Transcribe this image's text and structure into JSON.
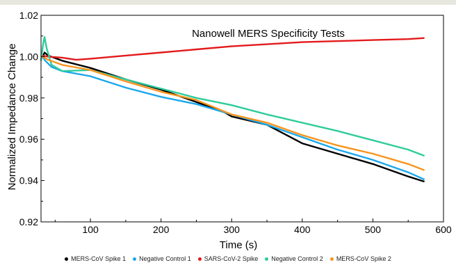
{
  "chart_data": {
    "type": "line",
    "title": "Nanowell MERS Specificity Tests",
    "xlabel": "Time (s)",
    "ylabel": "Normalized Impedance Change",
    "xlim": [
      30,
      600
    ],
    "ylim": [
      0.92,
      1.02
    ],
    "x_ticks": [
      100,
      200,
      300,
      400,
      500,
      600
    ],
    "y_ticks": [
      0.92,
      0.94,
      0.96,
      0.98,
      1.0,
      1.02
    ],
    "x_tick_labels": [
      "100",
      "200",
      "300",
      "400",
      "500",
      "600"
    ],
    "y_tick_labels": [
      "0.92",
      "0.94",
      "0.96",
      "0.98",
      "1.00",
      "1.02"
    ],
    "grid": false,
    "legend_position": "bottom",
    "series": [
      {
        "name": "MERS-CoV Spike 1",
        "color": "#000000",
        "points": [
          [
            32,
            0.9995
          ],
          [
            35,
            1.002
          ],
          [
            40,
            1.0005
          ],
          [
            60,
            0.998
          ],
          [
            100,
            0.9945
          ],
          [
            150,
            0.989
          ],
          [
            200,
            0.984
          ],
          [
            250,
            0.978
          ],
          [
            290,
            0.973
          ],
          [
            300,
            0.971
          ],
          [
            350,
            0.967
          ],
          [
            400,
            0.958
          ],
          [
            450,
            0.953
          ],
          [
            500,
            0.948
          ],
          [
            550,
            0.942
          ],
          [
            573,
            0.9395
          ]
        ]
      },
      {
        "name": "Negative Control 1",
        "color": "#1aa7ec",
        "points": [
          [
            32,
            1.0
          ],
          [
            36,
            0.998
          ],
          [
            45,
            0.995
          ],
          [
            60,
            0.993
          ],
          [
            100,
            0.9905
          ],
          [
            150,
            0.985
          ],
          [
            200,
            0.9805
          ],
          [
            250,
            0.977
          ],
          [
            300,
            0.972
          ],
          [
            350,
            0.967
          ],
          [
            400,
            0.961
          ],
          [
            450,
            0.955
          ],
          [
            500,
            0.95
          ],
          [
            550,
            0.944
          ],
          [
            573,
            0.9405
          ]
        ]
      },
      {
        "name": "SARS-CoV-2 Spike",
        "color": "#e31a1c",
        "points": [
          [
            32,
            1.0005
          ],
          [
            40,
            1.0
          ],
          [
            60,
            0.9995
          ],
          [
            80,
            0.9985
          ],
          [
            100,
            0.999
          ],
          [
            150,
            1.0005
          ],
          [
            200,
            1.002
          ],
          [
            250,
            1.0035
          ],
          [
            300,
            1.005
          ],
          [
            350,
            1.006
          ],
          [
            400,
            1.007
          ],
          [
            450,
            1.0075
          ],
          [
            500,
            1.008
          ],
          [
            550,
            1.0085
          ],
          [
            573,
            1.009
          ]
        ]
      },
      {
        "name": "Negative Control 2",
        "color": "#2ecc9a",
        "points": [
          [
            30,
            0.998
          ],
          [
            33,
            1.006
          ],
          [
            35,
            1.0095
          ],
          [
            38,
            1.004
          ],
          [
            45,
            0.996
          ],
          [
            60,
            0.993
          ],
          [
            100,
            0.9935
          ],
          [
            150,
            0.989
          ],
          [
            200,
            0.9845
          ],
          [
            250,
            0.98
          ],
          [
            300,
            0.9765
          ],
          [
            350,
            0.972
          ],
          [
            400,
            0.968
          ],
          [
            450,
            0.964
          ],
          [
            500,
            0.9595
          ],
          [
            550,
            0.955
          ],
          [
            573,
            0.952
          ]
        ]
      },
      {
        "name": "MERS-CoV Spike 2",
        "color": "#f7941d",
        "points": [
          [
            32,
            1.0
          ],
          [
            40,
            0.9985
          ],
          [
            60,
            0.996
          ],
          [
            100,
            0.9935
          ],
          [
            150,
            0.988
          ],
          [
            200,
            0.983
          ],
          [
            250,
            0.979
          ],
          [
            300,
            0.972
          ],
          [
            350,
            0.968
          ],
          [
            400,
            0.962
          ],
          [
            450,
            0.957
          ],
          [
            500,
            0.953
          ],
          [
            550,
            0.948
          ],
          [
            573,
            0.945
          ]
        ]
      }
    ]
  }
}
